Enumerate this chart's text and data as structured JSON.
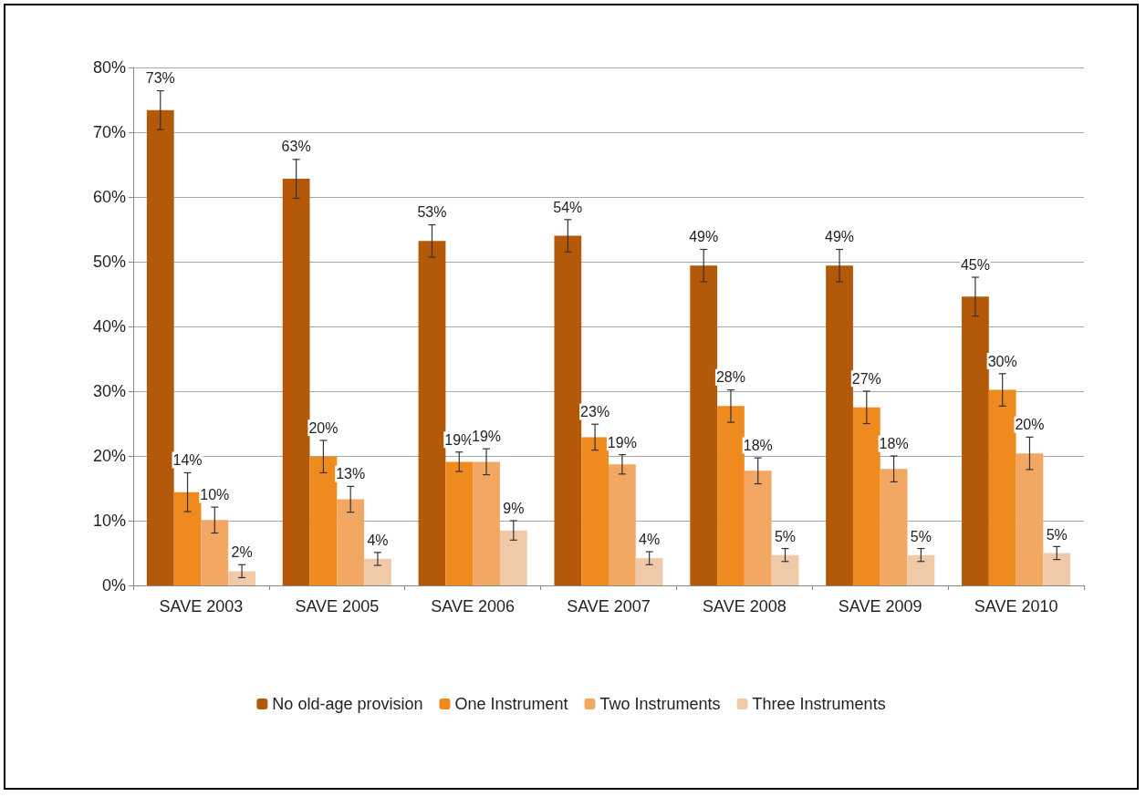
{
  "chart_data": {
    "type": "bar",
    "categories": [
      "SAVE 2003",
      "SAVE 2005",
      "SAVE 2006",
      "SAVE 2007",
      "SAVE 2008",
      "SAVE 2009",
      "SAVE 2010"
    ],
    "series": [
      {
        "name": "No old-age provision",
        "color": "#b35909",
        "values": [
          73.4,
          62.8,
          53.2,
          54,
          49.4,
          49.4,
          44.6
        ],
        "errors": [
          3,
          3,
          2.5,
          2.5,
          2.5,
          2.5,
          3
        ],
        "value_labels": [
          "73%",
          "63%",
          "53%",
          "54%",
          "49%",
          "49%",
          "45%"
        ]
      },
      {
        "name": "One Instrument",
        "color": "#ef8a1e",
        "values": [
          14.4,
          19.9,
          19.1,
          22.9,
          27.7,
          27.5,
          30.2
        ],
        "errors": [
          3,
          2.5,
          1.5,
          2,
          2.5,
          2.5,
          2.5
        ],
        "value_labels": [
          "14%",
          "20%",
          "19%",
          "23%",
          "28%",
          "27%",
          "30%"
        ]
      },
      {
        "name": "Two Instruments",
        "color": "#f2a862",
        "values": [
          10.1,
          13.3,
          19.1,
          18.7,
          17.7,
          18,
          20.4
        ],
        "errors": [
          2,
          2,
          2,
          1.5,
          2,
          2,
          2.5
        ],
        "value_labels": [
          "10%",
          "13%",
          "19%",
          "19%",
          "18%",
          "18%",
          "20%"
        ]
      },
      {
        "name": "Three Instruments",
        "color": "#f0c9a8",
        "values": [
          2.2,
          4.1,
          8.5,
          4.2,
          4.7,
          4.7,
          5
        ],
        "errors": [
          1,
          1,
          1.5,
          1,
          1,
          1,
          1
        ],
        "value_labels": [
          "2%",
          "4%",
          "9%",
          "4%",
          "5%",
          "5%",
          "5%"
        ]
      }
    ],
    "ylim": [
      0,
      80
    ],
    "yticks": [
      {
        "value": 0,
        "label": "0%"
      },
      {
        "value": 10,
        "label": "10%"
      },
      {
        "value": 20,
        "label": "20%"
      },
      {
        "value": 30,
        "label": "30%"
      },
      {
        "value": 40,
        "label": "40%"
      },
      {
        "value": 50,
        "label": "50%"
      },
      {
        "value": 60,
        "label": "60%"
      },
      {
        "value": 70,
        "label": "70%"
      },
      {
        "value": 80,
        "label": "80%"
      }
    ],
    "grid": "y",
    "legend": "bottom"
  }
}
